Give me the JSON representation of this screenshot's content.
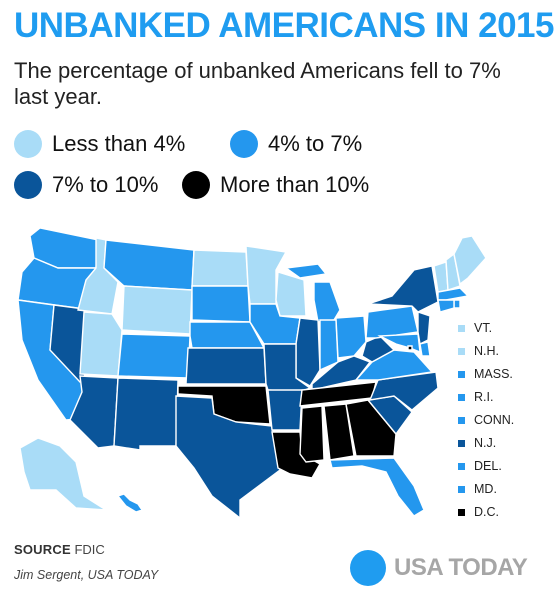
{
  "title": "UNBANKED AMERICANS IN 2015",
  "subtitle": "The percentage of unbanked Americans fell to 7% last year.",
  "colors": {
    "lt4": "#a9dcf7",
    "4to7": "#2497ee",
    "7to10": "#0a559a",
    "gt10": "#000000"
  },
  "legend": [
    {
      "label": "Less than 4%",
      "color": "#a9dcf7"
    },
    {
      "label": "4% to 7%",
      "color": "#2497ee"
    },
    {
      "label": "7% to 10%",
      "color": "#0a559a"
    },
    {
      "label": "More than 10%",
      "color": "#000000"
    }
  ],
  "state_key": [
    {
      "label": "VT.",
      "color": "#a9dcf7"
    },
    {
      "label": "N.H.",
      "color": "#a9dcf7"
    },
    {
      "label": "MASS.",
      "color": "#2497ee"
    },
    {
      "label": "R.I.",
      "color": "#2497ee"
    },
    {
      "label": "CONN.",
      "color": "#2497ee"
    },
    {
      "label": "N.J.",
      "color": "#0a559a"
    },
    {
      "label": "DEL.",
      "color": "#2497ee"
    },
    {
      "label": "MD.",
      "color": "#2497ee"
    },
    {
      "label": "D.C.",
      "color": "#000000"
    }
  ],
  "source": {
    "label": "SOURCE",
    "text": "FDIC"
  },
  "credit": "Jim Sergent, USA TODAY",
  "logo_text": "USA TODAY"
}
